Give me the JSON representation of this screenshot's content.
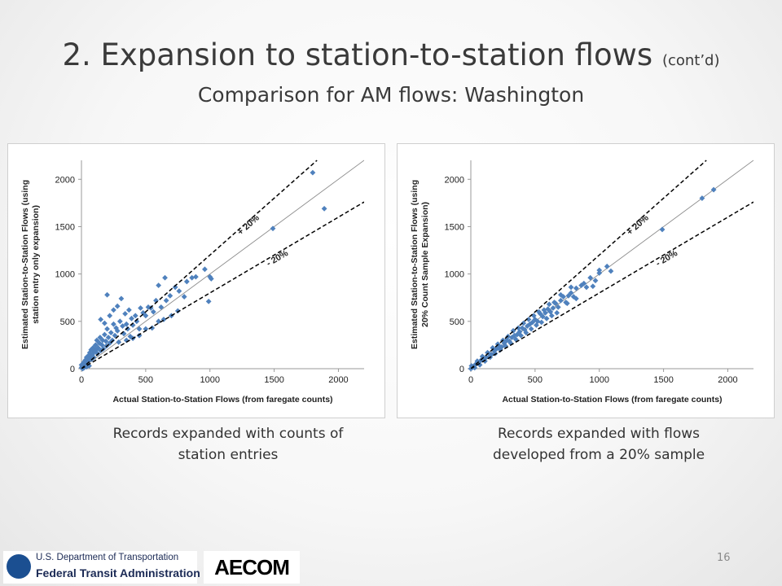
{
  "slide": {
    "title": "2. Expansion to station-to-station flows",
    "title_suffix": "(cont’d)",
    "subtitle": "Comparison for AM flows: Washington",
    "page_number": "16"
  },
  "captions": {
    "left": "Records expanded with counts of station entries",
    "right": "Records expanded with flows developed from a 20% sample"
  },
  "logos": {
    "dot_line1": "U.S. Department of Transportation",
    "dot_line2": "Federal Transit Administration",
    "aecom": "AECOM"
  },
  "colors": {
    "marker": "#4f81bd",
    "identity_line": "#8c8c8c",
    "band_line": "#000000"
  },
  "chart_data": [
    {
      "type": "scatter",
      "xlabel": "Actual Station-to-Station Flows (from faregate counts)",
      "ylabel": [
        "Estimated Station-to-Station Flows  (using",
        "station entry only expansion)"
      ],
      "xlim": [
        0,
        2200
      ],
      "ylim": [
        0,
        2200
      ],
      "xticks": [
        0,
        500,
        1000,
        1500,
        2000
      ],
      "yticks": [
        0,
        500,
        1000,
        1500,
        2000
      ],
      "grid": false,
      "annotations": {
        "upper": "+ 20%",
        "lower": "- 20%"
      },
      "reference_lines": {
        "identity_slope": 1.0,
        "upper_slope": 1.2,
        "lower_slope": 0.8
      },
      "points": [
        [
          1800,
          2070
        ],
        [
          1890,
          1690
        ],
        [
          1490,
          1480
        ],
        [
          1010,
          950
        ],
        [
          1000,
          970
        ],
        [
          990,
          710
        ],
        [
          960,
          1050
        ],
        [
          890,
          970
        ],
        [
          860,
          960
        ],
        [
          820,
          920
        ],
        [
          800,
          760
        ],
        [
          760,
          820
        ],
        [
          730,
          860
        ],
        [
          690,
          770
        ],
        [
          660,
          720
        ],
        [
          650,
          960
        ],
        [
          640,
          520
        ],
        [
          620,
          650
        ],
        [
          600,
          880
        ],
        [
          580,
          720
        ],
        [
          560,
          600
        ],
        [
          540,
          640
        ],
        [
          520,
          650
        ],
        [
          500,
          560
        ],
        [
          480,
          590
        ],
        [
          460,
          640
        ],
        [
          450,
          420
        ],
        [
          430,
          500
        ],
        [
          420,
          560
        ],
        [
          400,
          460
        ],
        [
          390,
          530
        ],
        [
          380,
          340
        ],
        [
          370,
          620
        ],
        [
          360,
          420
        ],
        [
          350,
          470
        ],
        [
          340,
          580
        ],
        [
          330,
          370
        ],
        [
          320,
          450
        ],
        [
          300,
          500
        ],
        [
          290,
          280
        ],
        [
          280,
          400
        ],
        [
          270,
          430
        ],
        [
          260,
          350
        ],
        [
          250,
          470
        ],
        [
          240,
          300
        ],
        [
          230,
          380
        ],
        [
          220,
          270
        ],
        [
          210,
          330
        ],
        [
          200,
          420
        ],
        [
          195,
          240
        ],
        [
          190,
          290
        ],
        [
          180,
          360
        ],
        [
          170,
          210
        ],
        [
          165,
          300
        ],
        [
          160,
          250
        ],
        [
          150,
          190
        ],
        [
          145,
          330
        ],
        [
          140,
          270
        ],
        [
          130,
          220
        ],
        [
          125,
          160
        ],
        [
          120,
          300
        ],
        [
          115,
          200
        ],
        [
          110,
          250
        ],
        [
          100,
          180
        ],
        [
          95,
          120
        ],
        [
          90,
          220
        ],
        [
          85,
          150
        ],
        [
          80,
          100
        ],
        [
          75,
          200
        ],
        [
          70,
          130
        ],
        [
          65,
          170
        ],
        [
          60,
          90
        ],
        [
          55,
          140
        ],
        [
          50,
          110
        ],
        [
          45,
          70
        ],
        [
          40,
          120
        ],
        [
          35,
          60
        ],
        [
          30,
          90
        ],
        [
          25,
          40
        ],
        [
          20,
          70
        ],
        [
          15,
          30
        ],
        [
          10,
          50
        ],
        [
          5,
          20
        ],
        [
          0,
          10
        ],
        [
          0,
          40
        ],
        [
          10,
          0
        ],
        [
          20,
          10
        ],
        [
          40,
          20
        ],
        [
          60,
          30
        ],
        [
          200,
          780
        ],
        [
          250,
          620
        ],
        [
          150,
          520
        ],
        [
          180,
          480
        ],
        [
          220,
          560
        ],
        [
          310,
          740
        ],
        [
          280,
          660
        ],
        [
          350,
          300
        ],
        [
          400,
          320
        ],
        [
          450,
          350
        ],
        [
          500,
          420
        ],
        [
          550,
          430
        ],
        [
          600,
          500
        ],
        [
          700,
          560
        ],
        [
          750,
          610
        ]
      ]
    },
    {
      "type": "scatter",
      "xlabel": "Actual Station-to-Station Flows (from faregate counts)",
      "ylabel": [
        "Estimated Station-to-Station Flows  (using",
        "20% Count Sample Expansion)"
      ],
      "xlim": [
        0,
        2200
      ],
      "ylim": [
        0,
        2200
      ],
      "xticks": [
        0,
        500,
        1000,
        1500,
        2000
      ],
      "yticks": [
        0,
        500,
        1000,
        1500,
        2000
      ],
      "grid": false,
      "annotations": {
        "upper": "+ 20%",
        "lower": "- 20%"
      },
      "reference_lines": {
        "identity_slope": 1.0,
        "upper_slope": 1.2,
        "lower_slope": 0.8
      },
      "points": [
        [
          1890,
          1890
        ],
        [
          1800,
          1800
        ],
        [
          1490,
          1470
        ],
        [
          1090,
          1030
        ],
        [
          1060,
          1080
        ],
        [
          1000,
          1010
        ],
        [
          970,
          930
        ],
        [
          930,
          960
        ],
        [
          900,
          860
        ],
        [
          860,
          880
        ],
        [
          820,
          850
        ],
        [
          800,
          760
        ],
        [
          780,
          800
        ],
        [
          760,
          770
        ],
        [
          740,
          700
        ],
        [
          720,
          760
        ],
        [
          700,
          720
        ],
        [
          680,
          650
        ],
        [
          660,
          690
        ],
        [
          640,
          640
        ],
        [
          620,
          600
        ],
        [
          600,
          630
        ],
        [
          580,
          590
        ],
        [
          560,
          550
        ],
        [
          540,
          580
        ],
        [
          520,
          500
        ],
        [
          500,
          520
        ],
        [
          480,
          490
        ],
        [
          460,
          470
        ],
        [
          440,
          450
        ],
        [
          420,
          410
        ],
        [
          400,
          430
        ],
        [
          380,
          390
        ],
        [
          360,
          360
        ],
        [
          340,
          350
        ],
        [
          320,
          330
        ],
        [
          300,
          290
        ],
        [
          280,
          300
        ],
        [
          260,
          270
        ],
        [
          240,
          230
        ],
        [
          220,
          240
        ],
        [
          200,
          210
        ],
        [
          180,
          190
        ],
        [
          160,
          150
        ],
        [
          140,
          160
        ],
        [
          120,
          120
        ],
        [
          100,
          110
        ],
        [
          80,
          90
        ],
        [
          60,
          60
        ],
        [
          40,
          50
        ],
        [
          20,
          25
        ],
        [
          10,
          10
        ],
        [
          0,
          0
        ],
        [
          5,
          30
        ],
        [
          30,
          10
        ],
        [
          50,
          80
        ],
        [
          70,
          40
        ],
        [
          90,
          130
        ],
        [
          110,
          80
        ],
        [
          130,
          170
        ],
        [
          150,
          120
        ],
        [
          170,
          220
        ],
        [
          190,
          160
        ],
        [
          210,
          260
        ],
        [
          230,
          200
        ],
        [
          250,
          300
        ],
        [
          270,
          240
        ],
        [
          290,
          340
        ],
        [
          310,
          270
        ],
        [
          330,
          400
        ],
        [
          350,
          310
        ],
        [
          370,
          430
        ],
        [
          390,
          350
        ],
        [
          410,
          480
        ],
        [
          430,
          380
        ],
        [
          450,
          520
        ],
        [
          470,
          420
        ],
        [
          490,
          560
        ],
        [
          510,
          460
        ],
        [
          530,
          600
        ],
        [
          550,
          490
        ],
        [
          570,
          620
        ],
        [
          590,
          530
        ],
        [
          610,
          680
        ],
        [
          630,
          560
        ],
        [
          650,
          700
        ],
        [
          670,
          590
        ],
        [
          700,
          780
        ],
        [
          750,
          690
        ],
        [
          780,
          860
        ],
        [
          820,
          740
        ],
        [
          880,
          900
        ],
        [
          950,
          870
        ],
        [
          1000,
          1040
        ]
      ]
    }
  ]
}
